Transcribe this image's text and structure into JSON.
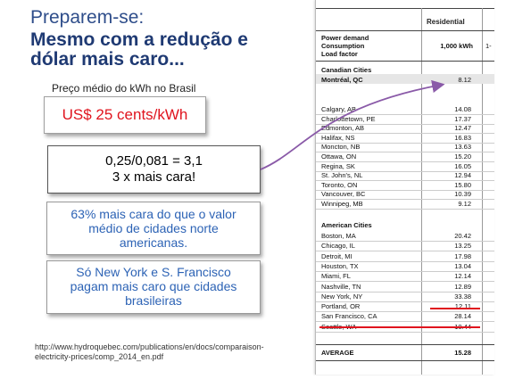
{
  "title": {
    "line1": "Preparem-se:",
    "line2": "Mesmo com a redução e",
    "line3": "dólar mais caro..."
  },
  "subtitle": "Preço médio do kWh no Brasil",
  "price_box": "US$ 25 cents/kWh",
  "calc_box": {
    "line1": "0,25/0,081 = 3,1",
    "line2": "3 x mais cara!"
  },
  "info_box_1": {
    "line1": "63% mais cara do que o valor",
    "line2": "médio de cidades norte",
    "line3": "americanas."
  },
  "info_box_2": {
    "line1": "Só New York e S. Francisco",
    "line2": "pagam mais caro que cidades",
    "line3": "brasileiras"
  },
  "source": {
    "line1": "http://www.hydroquebec.com/publications/en/docs/comparaison-",
    "line2": "electricity-prices/comp_2014_en.pdf"
  },
  "table": {
    "column_header": "Residential",
    "power_demand": "Power demand",
    "consumption": "Consumption",
    "consumption_value": "1,000 kWh",
    "load_factor": "Load factor",
    "canadian_header": "Canadian Cities",
    "american_header": "American Cities",
    "average_label": "AVERAGE",
    "average_value": "15.28",
    "next_col_fragment": "1-",
    "canadian_cities": [
      {
        "name": "Montréal, QC",
        "value": "8.12"
      },
      {
        "name": "Calgary, AB",
        "value": "14.08"
      },
      {
        "name": "Charlottetown, PE",
        "value": "17.37"
      },
      {
        "name": "Edmonton, AB",
        "value": "12.47"
      },
      {
        "name": "Halifax, NS",
        "value": "16.83"
      },
      {
        "name": "Moncton, NB",
        "value": "13.63"
      },
      {
        "name": "Ottawa, ON",
        "value": "15.20"
      },
      {
        "name": "Regina, SK",
        "value": "16.05"
      },
      {
        "name": "St. John's, NL",
        "value": "12.94"
      },
      {
        "name": "Toronto, ON",
        "value": "15.80"
      },
      {
        "name": "Vancouver, BC",
        "value": "10.39"
      },
      {
        "name": "Winnipeg, MB",
        "value": "9.12"
      }
    ],
    "american_cities": [
      {
        "name": "Boston, MA",
        "value": "20.42"
      },
      {
        "name": "Chicago, IL",
        "value": "13.25"
      },
      {
        "name": "Detroit, MI",
        "value": "17.98"
      },
      {
        "name": "Houston, TX",
        "value": "13.04"
      },
      {
        "name": "Miami, FL",
        "value": "12.14"
      },
      {
        "name": "Nashville, TN",
        "value": "12.89"
      },
      {
        "name": "New York, NY",
        "value": "33.38"
      },
      {
        "name": "Portland, OR",
        "value": "12.11"
      },
      {
        "name": "San Francisco, CA",
        "value": "28.14"
      },
      {
        "name": "Seattle, WA",
        "value": "10.44"
      }
    ]
  },
  "colors": {
    "title_blue": "#1f3a73",
    "price_red": "#e0141e",
    "info_blue": "#2d63b5",
    "connector_purple": "#8a5aa8"
  }
}
